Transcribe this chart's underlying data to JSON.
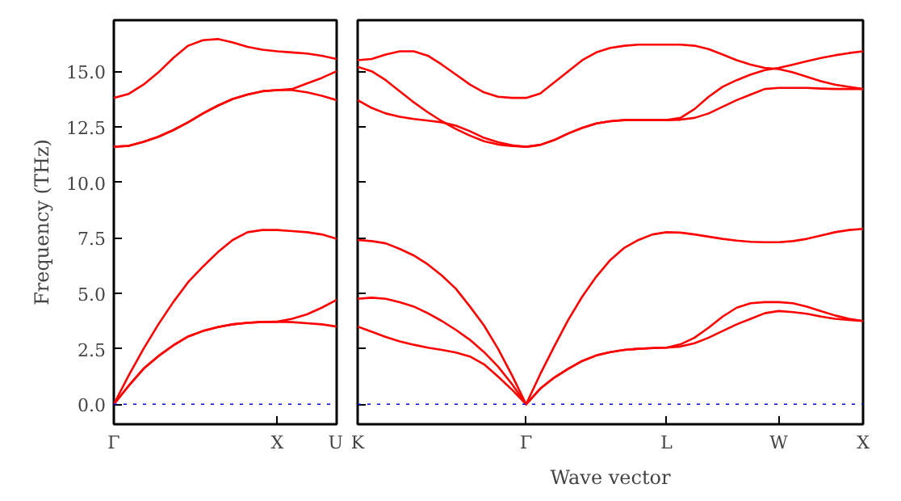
{
  "chart_data": [
    {
      "type": "line",
      "ylabel": "Frequency (THz)",
      "ylim": [
        -0.9,
        17.3
      ],
      "categories": [
        "Γ",
        null,
        null,
        null,
        null,
        null,
        null,
        null,
        null,
        null,
        null,
        "X",
        null,
        null,
        null,
        "U"
      ],
      "yticks": [
        {
          "value": 0,
          "label": "0.0"
        },
        {
          "value": 2.5,
          "label": "2.5"
        },
        {
          "value": 5,
          "label": "5.0"
        },
        {
          "value": 7.5,
          "label": "7.5"
        },
        {
          "value": 10,
          "label": "10.0"
        },
        {
          "value": 12.5,
          "label": "12.5"
        },
        {
          "value": 15,
          "label": "15.0"
        }
      ],
      "series": [
        {
          "color": "#ff0000",
          "values": [
            0,
            0.83,
            1.6,
            2.17,
            2.65,
            3.05,
            3.3,
            3.48,
            3.6,
            3.67,
            3.71,
            3.72,
            3.7,
            3.65,
            3.6,
            3.5
          ]
        },
        {
          "color": "#ff0000",
          "values": [
            0,
            0.83,
            1.6,
            2.17,
            2.65,
            3.05,
            3.3,
            3.48,
            3.6,
            3.67,
            3.71,
            3.72,
            3.85,
            4.05,
            4.35,
            4.7
          ]
        },
        {
          "color": "#ff0000",
          "values": [
            0,
            1.3,
            2.5,
            3.6,
            4.6,
            5.5,
            6.2,
            6.85,
            7.4,
            7.75,
            7.85,
            7.85,
            7.8,
            7.75,
            7.65,
            7.45
          ]
        },
        {
          "color": "#ff0000",
          "values": [
            11.6,
            11.64,
            11.82,
            12.05,
            12.35,
            12.7,
            13.1,
            13.45,
            13.75,
            13.95,
            14.1,
            14.15,
            14.15,
            14.05,
            13.9,
            13.7
          ]
        },
        {
          "color": "#ff0000",
          "values": [
            11.6,
            11.64,
            11.82,
            12.05,
            12.35,
            12.7,
            13.1,
            13.45,
            13.75,
            13.95,
            14.1,
            14.15,
            14.2,
            14.45,
            14.7,
            15.0
          ]
        },
        {
          "color": "#ff0000",
          "values": [
            13.8,
            13.98,
            14.4,
            14.95,
            15.6,
            16.15,
            16.4,
            16.45,
            16.3,
            16.1,
            15.97,
            15.9,
            15.85,
            15.8,
            15.7,
            15.55
          ]
        }
      ],
      "ref_lines": [
        {
          "axis": "y",
          "value": 0,
          "color": "#0000ff",
          "line_style": "dotted"
        }
      ],
      "grid": false
    },
    {
      "type": "line",
      "xlabel": "Wave vector",
      "ylim": [
        -0.9,
        17.3
      ],
      "tick_labels": "x",
      "categories": [
        "K",
        null,
        null,
        null,
        null,
        null,
        null,
        null,
        null,
        null,
        null,
        null,
        "Γ",
        null,
        null,
        null,
        null,
        null,
        null,
        null,
        null,
        null,
        "L",
        null,
        null,
        null,
        null,
        null,
        null,
        null,
        "W",
        null,
        null,
        null,
        null,
        null,
        "X"
      ],
      "yticks": [
        {
          "value": 0,
          "label": null
        },
        {
          "value": 2.5,
          "label": null
        },
        {
          "value": 5,
          "label": null
        },
        {
          "value": 7.5,
          "label": null
        },
        {
          "value": 10,
          "label": null
        },
        {
          "value": 12.5,
          "label": null
        },
        {
          "value": 15,
          "label": null
        }
      ],
      "series": [
        {
          "color": "#ff0000",
          "values": [
            3.5,
            3.27,
            3.03,
            2.83,
            2.68,
            2.55,
            2.45,
            2.33,
            2.15,
            1.8,
            1.25,
            0.65,
            0,
            0.7,
            1.2,
            1.6,
            1.95,
            2.2,
            2.35,
            2.45,
            2.5,
            2.53,
            2.55,
            2.6,
            2.75,
            3.0,
            3.3,
            3.6,
            3.85,
            4.1,
            4.2,
            4.15,
            4.08,
            3.95,
            3.85,
            3.8,
            3.75
          ]
        },
        {
          "color": "#ff0000",
          "values": [
            4.75,
            4.8,
            4.75,
            4.6,
            4.4,
            4.1,
            3.75,
            3.35,
            2.9,
            2.35,
            1.7,
            0.9,
            0,
            0.7,
            1.2,
            1.6,
            1.95,
            2.2,
            2.35,
            2.45,
            2.5,
            2.53,
            2.55,
            2.7,
            3.0,
            3.45,
            3.95,
            4.35,
            4.55,
            4.6,
            4.6,
            4.55,
            4.4,
            4.2,
            4.0,
            3.85,
            3.75
          ]
        },
        {
          "color": "#ff0000",
          "values": [
            7.4,
            7.35,
            7.25,
            7.0,
            6.7,
            6.3,
            5.8,
            5.2,
            4.4,
            3.55,
            2.5,
            1.3,
            0,
            1.35,
            2.6,
            3.8,
            4.85,
            5.75,
            6.5,
            7.05,
            7.4,
            7.65,
            7.75,
            7.73,
            7.65,
            7.55,
            7.45,
            7.37,
            7.32,
            7.3,
            7.3,
            7.35,
            7.45,
            7.6,
            7.75,
            7.85,
            7.9
          ]
        },
        {
          "color": "#ff0000",
          "values": [
            13.7,
            13.35,
            13.1,
            12.95,
            12.85,
            12.78,
            12.7,
            12.55,
            12.3,
            12.0,
            11.8,
            11.67,
            11.6,
            11.68,
            11.9,
            12.2,
            12.45,
            12.65,
            12.75,
            12.8,
            12.8,
            12.8,
            12.8,
            12.82,
            12.9,
            13.1,
            13.4,
            13.7,
            13.95,
            14.2,
            14.25,
            14.25,
            14.25,
            14.22,
            14.2,
            14.2,
            14.2
          ]
        },
        {
          "color": "#ff0000",
          "values": [
            15.2,
            15.0,
            14.6,
            14.1,
            13.6,
            13.15,
            12.75,
            12.4,
            12.1,
            11.85,
            11.7,
            11.63,
            11.6,
            11.68,
            11.9,
            12.2,
            12.45,
            12.65,
            12.75,
            12.8,
            12.8,
            12.8,
            12.8,
            12.9,
            13.3,
            13.85,
            14.3,
            14.6,
            14.85,
            15.05,
            15.15,
            15.3,
            15.45,
            15.6,
            15.72,
            15.82,
            15.9
          ]
        },
        {
          "color": "#ff0000",
          "values": [
            15.5,
            15.55,
            15.75,
            15.9,
            15.9,
            15.7,
            15.3,
            14.85,
            14.4,
            14.05,
            13.85,
            13.8,
            13.8,
            14.0,
            14.5,
            15.0,
            15.5,
            15.85,
            16.05,
            16.15,
            16.2,
            16.2,
            16.2,
            16.2,
            16.15,
            16.0,
            15.75,
            15.5,
            15.3,
            15.15,
            15.1,
            14.95,
            14.75,
            14.55,
            14.4,
            14.3,
            14.2
          ]
        }
      ],
      "ref_lines": [
        {
          "axis": "y",
          "value": 0,
          "color": "#0000ff",
          "line_style": "dotted"
        }
      ],
      "grid": false
    }
  ]
}
